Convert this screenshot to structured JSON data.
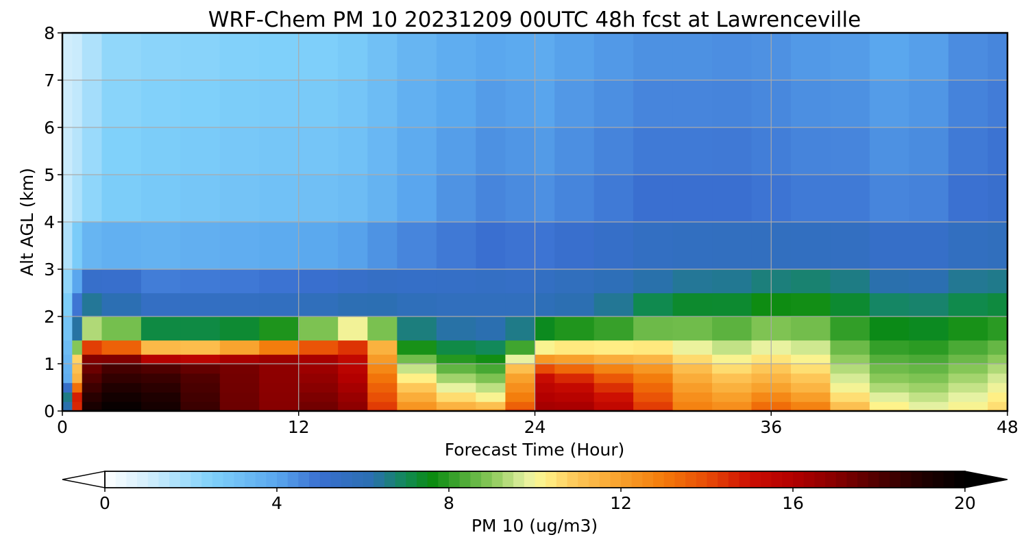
{
  "chart_data": {
    "type": "heatmap",
    "title": "WRF-Chem PM 10  20231209 00UTC 48h fcst at Lawrenceville",
    "xlabel": "Forecast Time (Hour)",
    "ylabel": "Alt AGL (km)",
    "xlim": [
      0,
      48
    ],
    "ylim": [
      0,
      8
    ],
    "x_ticks": [
      0,
      12,
      24,
      36,
      48
    ],
    "y_ticks": [
      0,
      1,
      2,
      3,
      4,
      5,
      6,
      7,
      8
    ],
    "grid": true,
    "x_values": [
      0,
      0.5,
      1,
      2,
      4,
      6,
      8,
      10,
      12,
      14,
      15.5,
      17,
      19,
      21,
      22.5,
      24,
      25,
      27,
      29,
      31,
      33,
      35,
      37,
      39,
      41,
      43,
      45,
      47,
      48
    ],
    "y_values": [
      0,
      0.05,
      0.2,
      0.4,
      0.6,
      0.8,
      1.0,
      1.2,
      1.5,
      2.0,
      2.5,
      3.0,
      4.0,
      5.0,
      6.0,
      7.0,
      8.0
    ],
    "profiles": {
      "top": [
        1.0,
        1.0,
        1.1,
        2.0,
        2.2,
        2.2,
        2.3,
        2.4,
        2.4,
        2.5,
        2.8,
        3.2,
        3.6,
        3.8,
        4.0,
        3.6,
        3.9,
        4.1,
        4.2,
        4.4,
        4.2,
        4.5,
        4.1,
        4.2,
        4.0,
        3.8,
        4.3,
        4.5,
        4.5
      ],
      "mid": [
        1.0,
        1.5,
        2.0,
        2.6,
        2.8,
        2.9,
        3.0,
        3.1,
        3.2,
        3.2,
        3.4,
        3.9,
        4.3,
        4.6,
        4.8,
        4.4,
        4.6,
        4.8,
        5.0,
        5.2,
        5.0,
        5.2,
        4.8,
        5.0,
        4.8,
        4.6,
        4.9,
        5.2,
        5.2
      ],
      "pbl_height": [
        0.1,
        0.4,
        1.6,
        1.9,
        1.6,
        1.6,
        1.6,
        1.6,
        1.7,
        1.8,
        1.9,
        1.8,
        1.6,
        1.7,
        1.6,
        1.7,
        1.9,
        2.0,
        2.1,
        2.4,
        2.4,
        2.5,
        2.6,
        2.6,
        2.5,
        2.3,
        2.4,
        2.5,
        2.5
      ],
      "pbl_value": [
        2.0,
        6.0,
        7.6,
        7.6,
        6.5,
        6.5,
        6.5,
        6.5,
        6.5,
        6.6,
        6.8,
        6.6,
        6.2,
        6.2,
        6.0,
        6.2,
        6.4,
        6.4,
        6.6,
        6.8,
        6.8,
        6.8,
        7.0,
        6.9,
        6.8,
        6.5,
        6.8,
        6.8,
        6.8
      ],
      "layer_height": [
        0.05,
        0.5,
        1.25,
        1.2,
        1.05,
        0.95,
        1.05,
        1.15,
        1.2,
        1.35,
        1.5,
        0.7,
        0.45,
        0.25,
        0.2,
        0.8,
        0.7,
        0.6,
        0.75,
        0.85,
        0.55,
        0.5,
        0.45,
        0.45,
        0.5,
        0.5,
        0.7,
        0.65,
        0.6
      ],
      "layer_value": [
        2.0,
        12.0,
        16.0,
        17.5,
        18.0,
        18.0,
        17.5,
        17.0,
        16.5,
        15.5,
        14.5,
        11.0,
        10.5,
        10.0,
        10.5,
        15.0,
        15.5,
        14.5,
        13.5,
        12.0,
        11.5,
        11.5,
        12.5,
        10.5,
        9.5,
        9.0,
        9.0,
        9.5,
        10.0
      ],
      "surface_value": [
        1.5,
        10.0,
        19.0,
        20.0,
        20.0,
        19.0,
        18.0,
        17.0,
        17.0,
        18.0,
        16.0,
        13.0,
        12.5,
        12.0,
        12.5,
        16.0,
        17.0,
        16.0,
        15.5,
        13.5,
        12.5,
        13.0,
        14.5,
        12.0,
        11.0,
        10.0,
        10.0,
        10.5,
        11.0
      ]
    },
    "colorbar": {
      "label": "PM 10  (ug/m3)",
      "vmin": 0,
      "vmax": 20,
      "ticks": [
        0,
        4,
        8,
        12,
        16,
        20
      ],
      "extend": "both",
      "anchors": [
        [
          0.0,
          "#ffffff"
        ],
        [
          1.0,
          "#d2eefc"
        ],
        [
          2.5,
          "#7fd0fa"
        ],
        [
          4.0,
          "#5aa7ee"
        ],
        [
          5.0,
          "#3a6fd0"
        ],
        [
          6.2,
          "#2b6fb1"
        ],
        [
          7.0,
          "#118a55"
        ],
        [
          7.6,
          "#0a8a10"
        ],
        [
          8.0,
          "#2c9b24"
        ],
        [
          9.0,
          "#8bc95a"
        ],
        [
          9.8,
          "#e6f2a3"
        ],
        [
          10.2,
          "#fff38a"
        ],
        [
          11.0,
          "#fdc455"
        ],
        [
          12.0,
          "#f8a12c"
        ],
        [
          13.0,
          "#f37a0a"
        ],
        [
          14.0,
          "#e84c06"
        ],
        [
          15.0,
          "#cc0e02"
        ],
        [
          16.0,
          "#b30000"
        ],
        [
          17.0,
          "#860000"
        ],
        [
          18.0,
          "#4e0000"
        ],
        [
          19.0,
          "#200000"
        ],
        [
          20.0,
          "#000000"
        ]
      ]
    }
  }
}
